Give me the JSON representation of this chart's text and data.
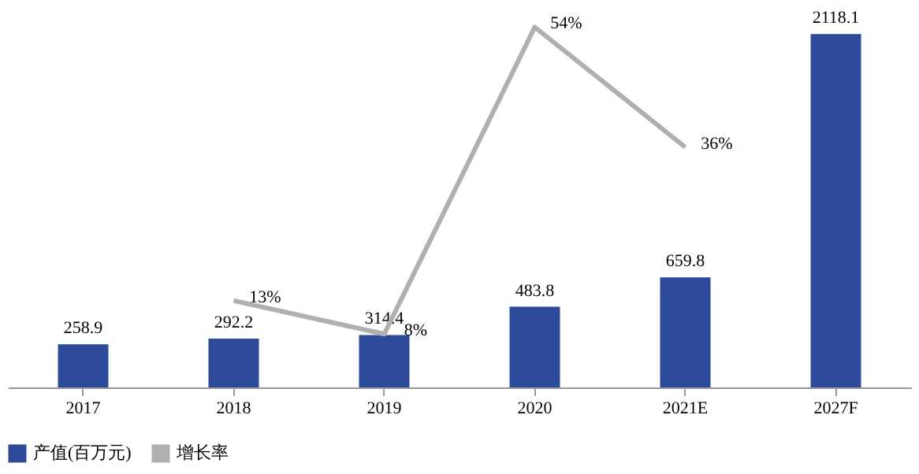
{
  "chart_data": {
    "type": "bar",
    "categories": [
      "2017",
      "2018",
      "2019",
      "2020",
      "2021E",
      "2027F"
    ],
    "data_labels": true,
    "legend": "bottom",
    "series": [
      {
        "name": "产值(百万元)",
        "color": "#2e4a9a",
        "values": [
          258.9,
          292.2,
          314.4,
          483.8,
          659.8,
          2118.1
        ]
      },
      {
        "name": "增长率",
        "type": "line",
        "axis": "y2",
        "color": "#b0b0b0",
        "values": [
          null,
          13,
          8,
          54,
          36,
          null
        ],
        "value_labels": [
          null,
          "13%",
          "8%",
          "54%",
          "36%",
          null
        ]
      }
    ]
  }
}
